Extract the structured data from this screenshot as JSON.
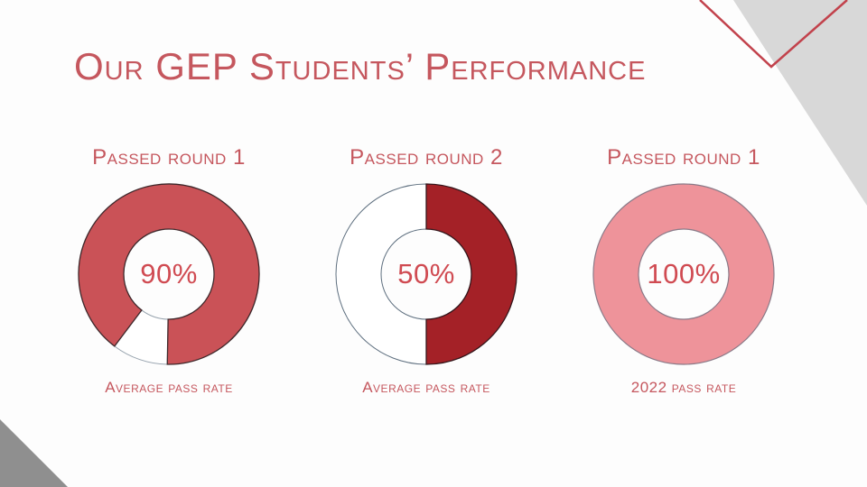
{
  "slide": {
    "title": "Our GEP Students’ Performance"
  },
  "palette": {
    "heading_red": "#C5575E",
    "percent_red": "#D04B52",
    "accent_red": "#C2424C",
    "corner_light_gray": "#D8D8D8",
    "corner_dark_gray": "#8F8F8F"
  },
  "chart_data": [
    {
      "type": "pie",
      "variant": "donut",
      "title": "Passed round 1",
      "center_label": "90%",
      "value_pct": 90,
      "remainder_pct": 10,
      "caption": "Average pass rate",
      "start_angle_deg": 217,
      "fill_color": "#CA5257",
      "remainder_color": "#FFFFFF",
      "value_stroke": "#3E282B",
      "remainder_stroke": "#97A3AE"
    },
    {
      "type": "pie",
      "variant": "donut",
      "title": "Passed round 2",
      "center_label": "50%",
      "value_pct": 50,
      "remainder_pct": 50,
      "caption": "Average pass rate",
      "start_angle_deg": 0,
      "fill_color": "#A42127",
      "remainder_color": "#FFFFFF",
      "value_stroke": "#33161B",
      "remainder_stroke": "#5E6F7F"
    },
    {
      "type": "pie",
      "variant": "donut",
      "title": "Passed round 1",
      "center_label": "100%",
      "value_pct": 100,
      "remainder_pct": 0,
      "caption": "2022 pass rate",
      "start_angle_deg": 0,
      "fill_color": "#EE939A",
      "remainder_color": "#FFFFFF",
      "value_stroke": "#8A7A88",
      "remainder_stroke": "#8A7A88"
    }
  ]
}
